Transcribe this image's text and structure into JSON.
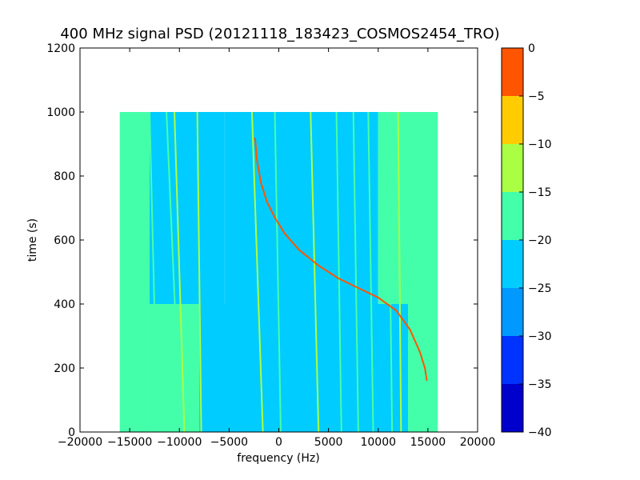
{
  "chart_data": {
    "type": "heatmap",
    "title": "400 MHz signal PSD (20121118_183423_COSMOS2454_TRO)",
    "xlabel": "frequency (Hz)",
    "ylabel": "time (s)",
    "xlim": [
      -20000,
      20000
    ],
    "ylim": [
      0,
      1200
    ],
    "xticks": [
      -20000,
      -15000,
      -10000,
      -5000,
      0,
      5000,
      10000,
      15000,
      20000
    ],
    "yticks": [
      0,
      200,
      400,
      600,
      800,
      1000,
      1200
    ],
    "data_extent": {
      "x": [
        -16000,
        16000
      ],
      "y": [
        0,
        1000
      ]
    },
    "colorbar": {
      "levels": [
        -40,
        -35,
        -30,
        -25,
        -20,
        -15,
        -10,
        -5,
        0
      ],
      "tick_labels": [
        "−40",
        "−35",
        "−30",
        "−25",
        "−20",
        "−15",
        "−10",
        "−5",
        "0"
      ],
      "colors": [
        "#0000cc",
        "#0033ff",
        "#0099ff",
        "#00ccff",
        "#44ffaa",
        "#aaff44",
        "#ffcc00",
        "#ff5500",
        "#cc0000"
      ]
    },
    "background_regions": [
      {
        "x": [
          -16000,
          -13000
        ],
        "y": [
          0,
          1000
        ],
        "level": -17.5
      },
      {
        "x": [
          -13000,
          -8000
        ],
        "y": [
          0,
          400
        ],
        "level": -17.5
      },
      {
        "x": [
          -13000,
          -5500
        ],
        "y": [
          400,
          1000
        ],
        "level": -22.5
      },
      {
        "x": [
          -8000,
          13000
        ],
        "y": [
          0,
          400
        ],
        "level": -22.5
      },
      {
        "x": [
          -5500,
          10000
        ],
        "y": [
          400,
          1000
        ],
        "level": -22.5
      },
      {
        "x": [
          10000,
          16000
        ],
        "y": [
          400,
          1000
        ],
        "level": -17.5
      },
      {
        "x": [
          13000,
          16000
        ],
        "y": [
          0,
          400
        ],
        "level": -17.5
      }
    ],
    "vertical_lines": [
      {
        "x_top": -15500,
        "x_bottom": -15200,
        "level": -17.5
      },
      {
        "x_top": -13000,
        "x_bottom": -12200,
        "level": -17.5
      },
      {
        "x_top": -11300,
        "x_bottom": -9900,
        "level": -17.5
      },
      {
        "x_top": -10500,
        "x_bottom": -9500,
        "level": -12.5
      },
      {
        "x_top": -8200,
        "x_bottom": -7800,
        "level": -12.5
      },
      {
        "x_top": -2700,
        "x_bottom": -1600,
        "level": -12.5
      },
      {
        "x_top": -400,
        "x_bottom": 200,
        "level": -17.5
      },
      {
        "x_top": 3200,
        "x_bottom": 4000,
        "level": -12.5
      },
      {
        "x_top": 5800,
        "x_bottom": 6300,
        "level": -17.5
      },
      {
        "x_top": 7500,
        "x_bottom": 8000,
        "level": -17.5
      },
      {
        "x_top": 9000,
        "x_bottom": 9500,
        "level": -17.5
      },
      {
        "x_top": 11000,
        "x_bottom": 11400,
        "level": -17.5
      },
      {
        "x_top": 12000,
        "x_bottom": 12300,
        "level": -12.5
      }
    ],
    "doppler_curve": {
      "level": -2.5,
      "points": [
        {
          "x": -2400,
          "y": 920
        },
        {
          "x": -2200,
          "y": 850
        },
        {
          "x": -1800,
          "y": 780
        },
        {
          "x": -1200,
          "y": 720
        },
        {
          "x": -400,
          "y": 670
        },
        {
          "x": 600,
          "y": 620
        },
        {
          "x": 2000,
          "y": 570
        },
        {
          "x": 4000,
          "y": 520
        },
        {
          "x": 6000,
          "y": 480
        },
        {
          "x": 8000,
          "y": 450
        },
        {
          "x": 10000,
          "y": 420
        },
        {
          "x": 11800,
          "y": 380
        },
        {
          "x": 13200,
          "y": 320
        },
        {
          "x": 14200,
          "y": 250
        },
        {
          "x": 14700,
          "y": 200
        },
        {
          "x": 14900,
          "y": 160
        }
      ]
    }
  }
}
